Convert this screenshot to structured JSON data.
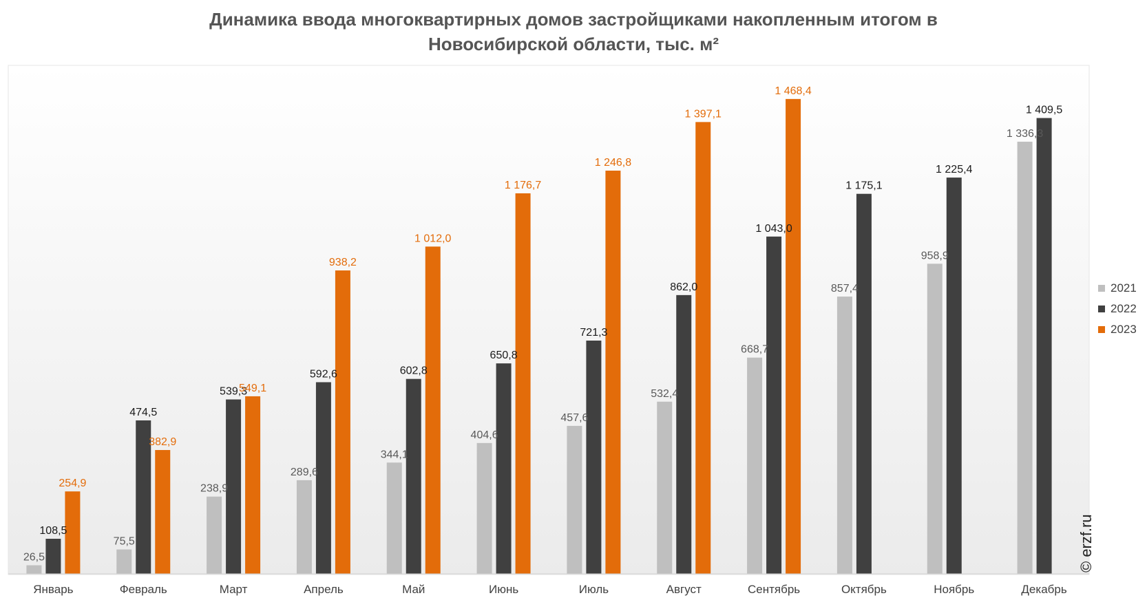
{
  "chart_data": {
    "type": "bar",
    "title_line1": "Динамика ввода многоквартирных домов застройщиками накопленным итогом в",
    "title_line2": "Новосибирской области, тыс. м²",
    "xlabel": "",
    "ylabel": "",
    "ylim": [
      0,
      1600
    ],
    "grid": false,
    "legend_position": "right",
    "categories": [
      "Январь",
      "Февраль",
      "Март",
      "Апрель",
      "Май",
      "Июнь",
      "Июль",
      "Август",
      "Сентябрь",
      "Октябрь",
      "Ноябрь",
      "Декабрь"
    ],
    "series": [
      {
        "name": "2021",
        "color": "#bfbfbf",
        "label_color": "#595959",
        "values": [
          26.5,
          75.5,
          238.9,
          289.6,
          344.1,
          404.6,
          457.6,
          532.4,
          668.7,
          857.4,
          958.9,
          1336.3
        ],
        "labels": [
          "26,5",
          "75,5",
          "238,9",
          "289,6",
          "344,1",
          "404,6",
          "457,6",
          "532,4",
          "668,7",
          "857,4",
          "958,9",
          "1 336,3"
        ]
      },
      {
        "name": "2022",
        "color": "#404040",
        "label_color": "#1a1a1a",
        "values": [
          108.5,
          474.5,
          539.3,
          592.6,
          602.8,
          650.8,
          721.3,
          862.0,
          1043.0,
          1175.1,
          1225.4,
          1409.5
        ],
        "labels": [
          "108,5",
          "474,5",
          "539,3",
          "592,6",
          "602,8",
          "650,8",
          "721,3",
          "862,0",
          "1 043,0",
          "1 175,1",
          "1 225,4",
          "1 409,5"
        ]
      },
      {
        "name": "2023",
        "color": "#e36c0a",
        "label_color": "#e36c0a",
        "values": [
          254.9,
          382.9,
          549.1,
          938.2,
          1012.0,
          1176.7,
          1246.8,
          1397.1,
          1468.4,
          null,
          null,
          null
        ],
        "labels": [
          "254,9",
          "382,9",
          "549,1",
          "938,2",
          "1 012,0",
          "1 176,7",
          "1 246,8",
          "1 397,1",
          "1 468,4",
          null,
          null,
          null
        ]
      }
    ]
  },
  "watermark": "© erzf.ru"
}
